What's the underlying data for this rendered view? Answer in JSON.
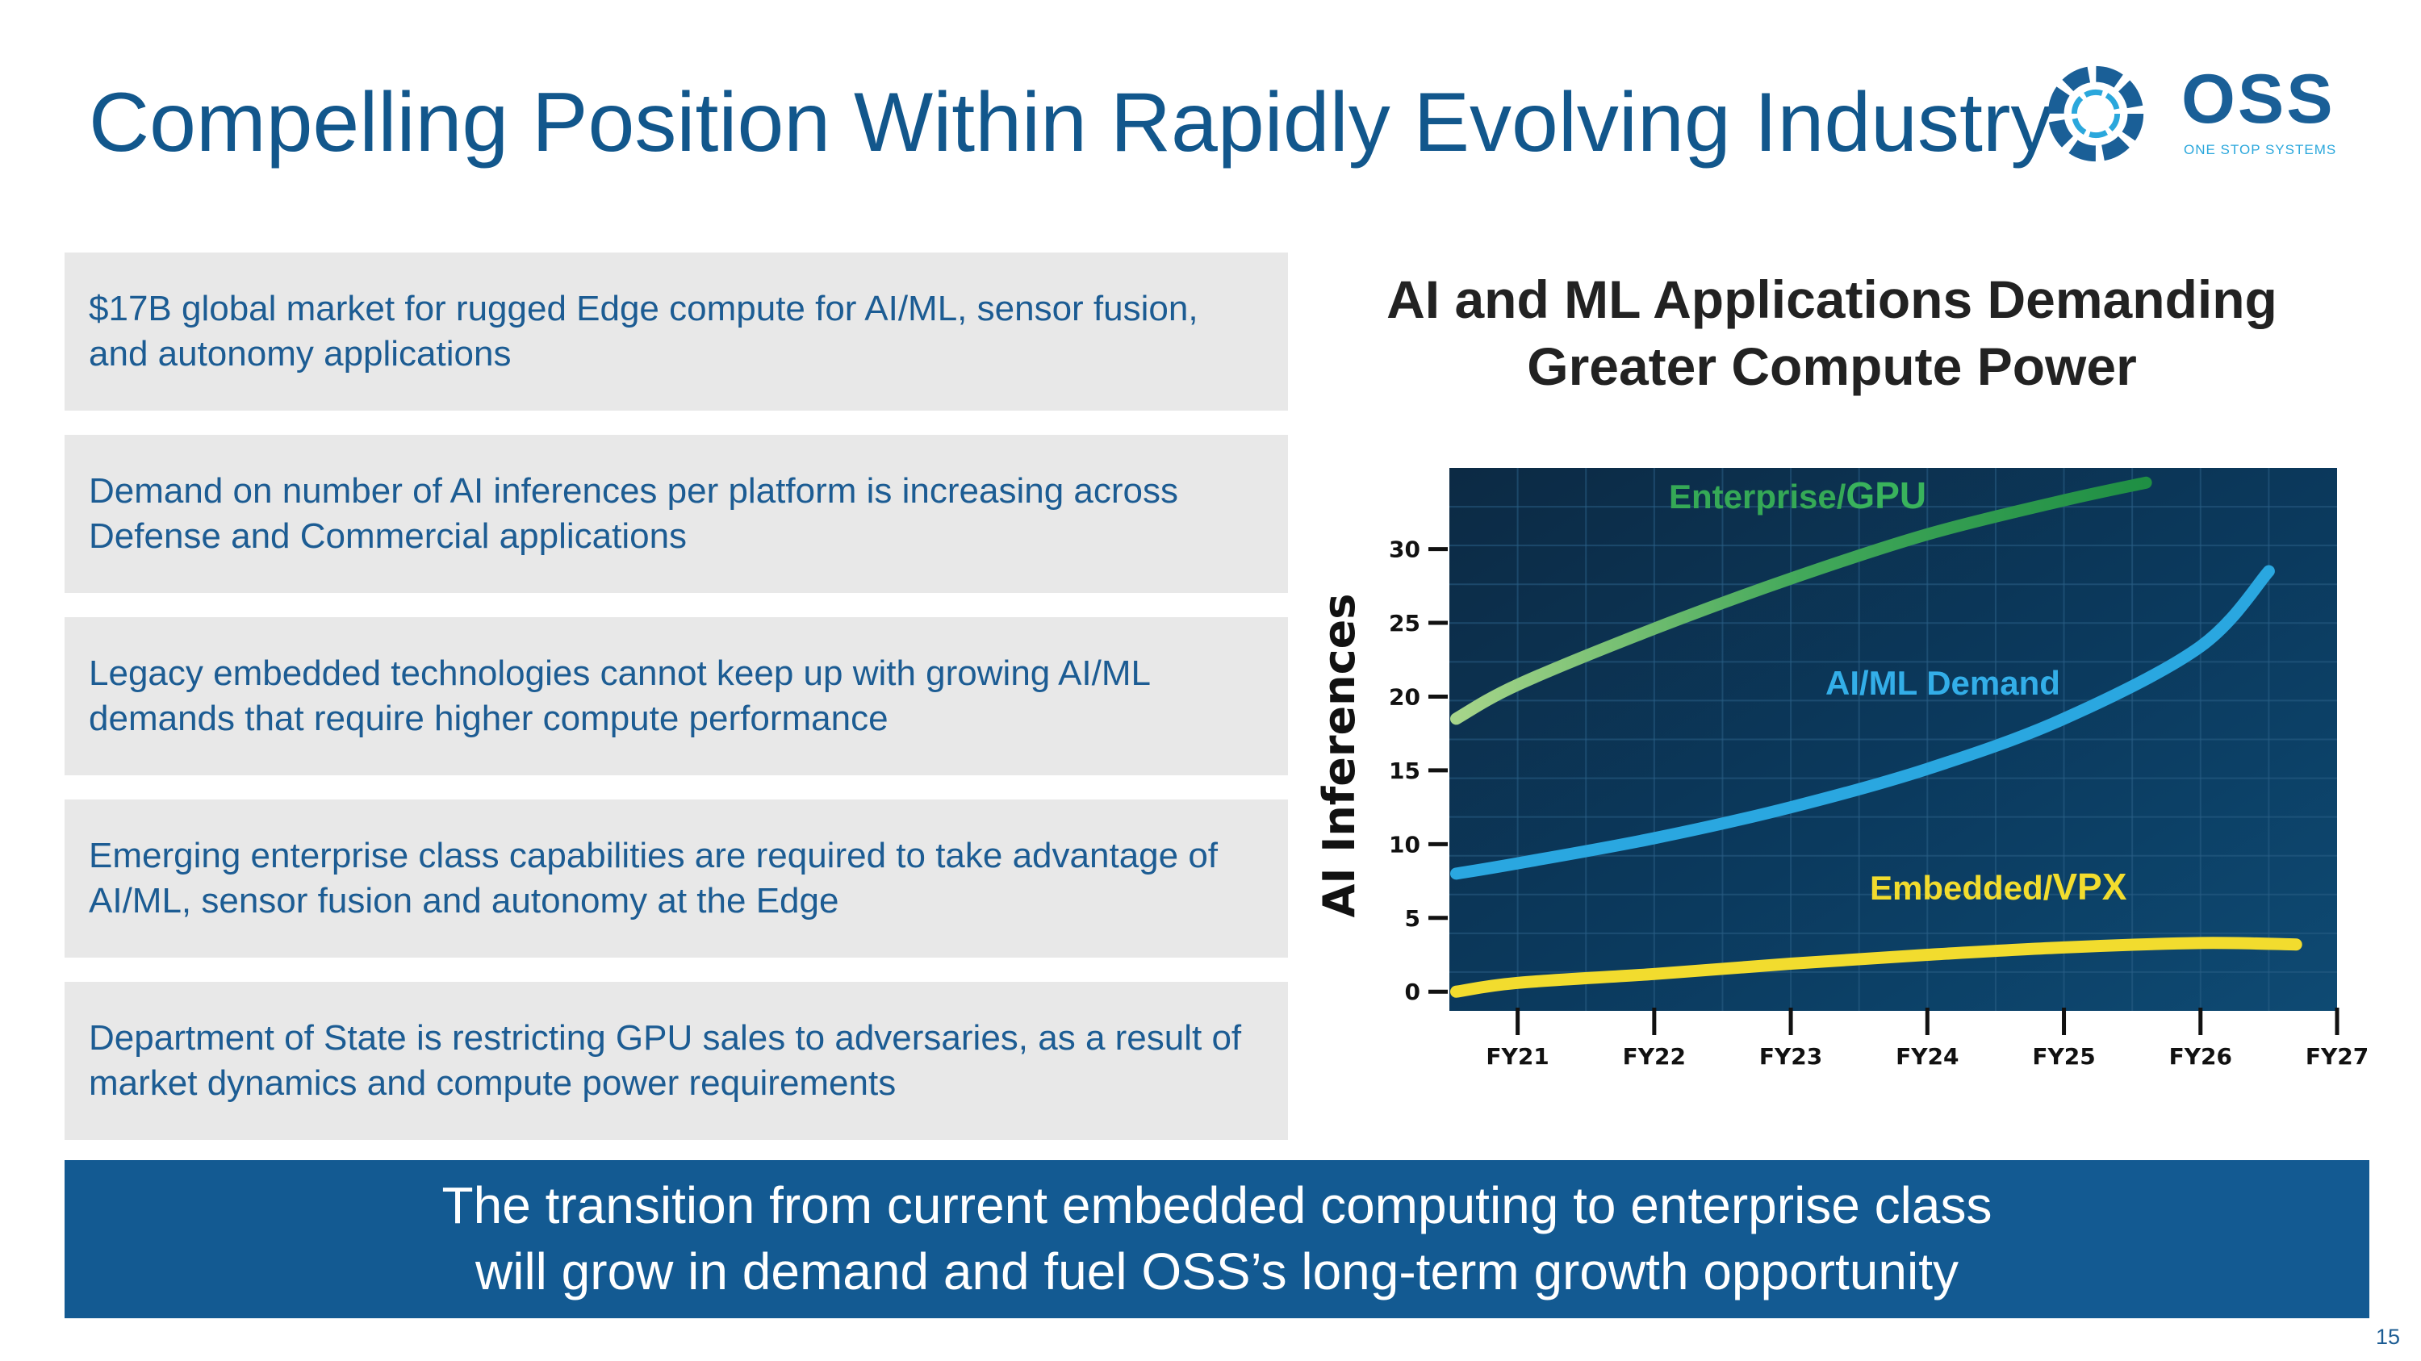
{
  "slide": {
    "title": "Compelling Position Within Rapidly Evolving Industry",
    "page_number": "15"
  },
  "logo": {
    "wordmark": "OSS",
    "tagline": "ONE STOP SYSTEMS",
    "icon": "gear-ring-logo-icon"
  },
  "bullets": [
    "$17B global market for rugged Edge compute for AI/ML, sensor fusion, and autonomy applications",
    "Demand on number of AI inferences per platform is increasing across Defense and Commercial applications",
    "Legacy embedded technologies cannot keep up with growing AI/ML demands that require higher compute performance",
    "Emerging enterprise class capabilities are required to take advantage of AI/ML, sensor fusion and autonomy at the Edge",
    "Department of State is restricting GPU sales to adversaries, as a result of market dynamics and compute power requirements"
  ],
  "banner": {
    "line1": "The transition from current embedded computing to enterprise class",
    "line2": "will grow in demand and fuel OSS’s long-term growth opportunity"
  },
  "colors": {
    "title": "#12578c",
    "bullet_bg": "#e8e8e8",
    "bullet_text": "#1c5c93",
    "banner_bg": "#135a92",
    "plot_bg": "#0b3556",
    "enterprise": "#2ea052",
    "aiml": "#2aa7e0",
    "embedded": "#f2dc2e"
  },
  "chart_data": {
    "type": "line",
    "title_line1": "AI and ML Applications Demanding",
    "title_line2": "Greater Compute Power",
    "xlabel": "",
    "ylabel": "AI Inferences",
    "x_ticks": [
      "FY21",
      "FY22",
      "FY23",
      "FY24",
      "FY25",
      "FY26",
      "FY27"
    ],
    "y_ticks": [
      0,
      5,
      10,
      15,
      20,
      25,
      30
    ],
    "xlim": [
      -0.5,
      6.0
    ],
    "ylim": [
      -1.3,
      35.5
    ],
    "grid": true,
    "series": [
      {
        "name": "Enterprise/GPU",
        "label_prefix": "Enterprise/",
        "label_emph": "GPU",
        "x": [
          -0.45,
          0.0,
          1.0,
          2.0,
          3.0,
          4.0,
          4.6
        ],
        "y": [
          18.5,
          20.8,
          24.6,
          28.0,
          31.0,
          33.3,
          34.5
        ]
      },
      {
        "name": "AI/ML Demand",
        "label_prefix": "AI/ML Demand",
        "label_emph": "",
        "x": [
          -0.45,
          0.0,
          1.0,
          2.0,
          3.0,
          4.0,
          5.0,
          5.5
        ],
        "y": [
          8.0,
          8.7,
          10.4,
          12.5,
          15.1,
          18.5,
          23.4,
          28.5
        ]
      },
      {
        "name": "Embedded/VPX",
        "label_prefix": "Embedded/",
        "label_emph": "VPX",
        "x": [
          -0.45,
          0.0,
          1.0,
          2.0,
          3.0,
          4.0,
          5.0,
          5.7
        ],
        "y": [
          0.0,
          0.6,
          1.2,
          1.9,
          2.5,
          3.0,
          3.3,
          3.2
        ]
      }
    ]
  }
}
